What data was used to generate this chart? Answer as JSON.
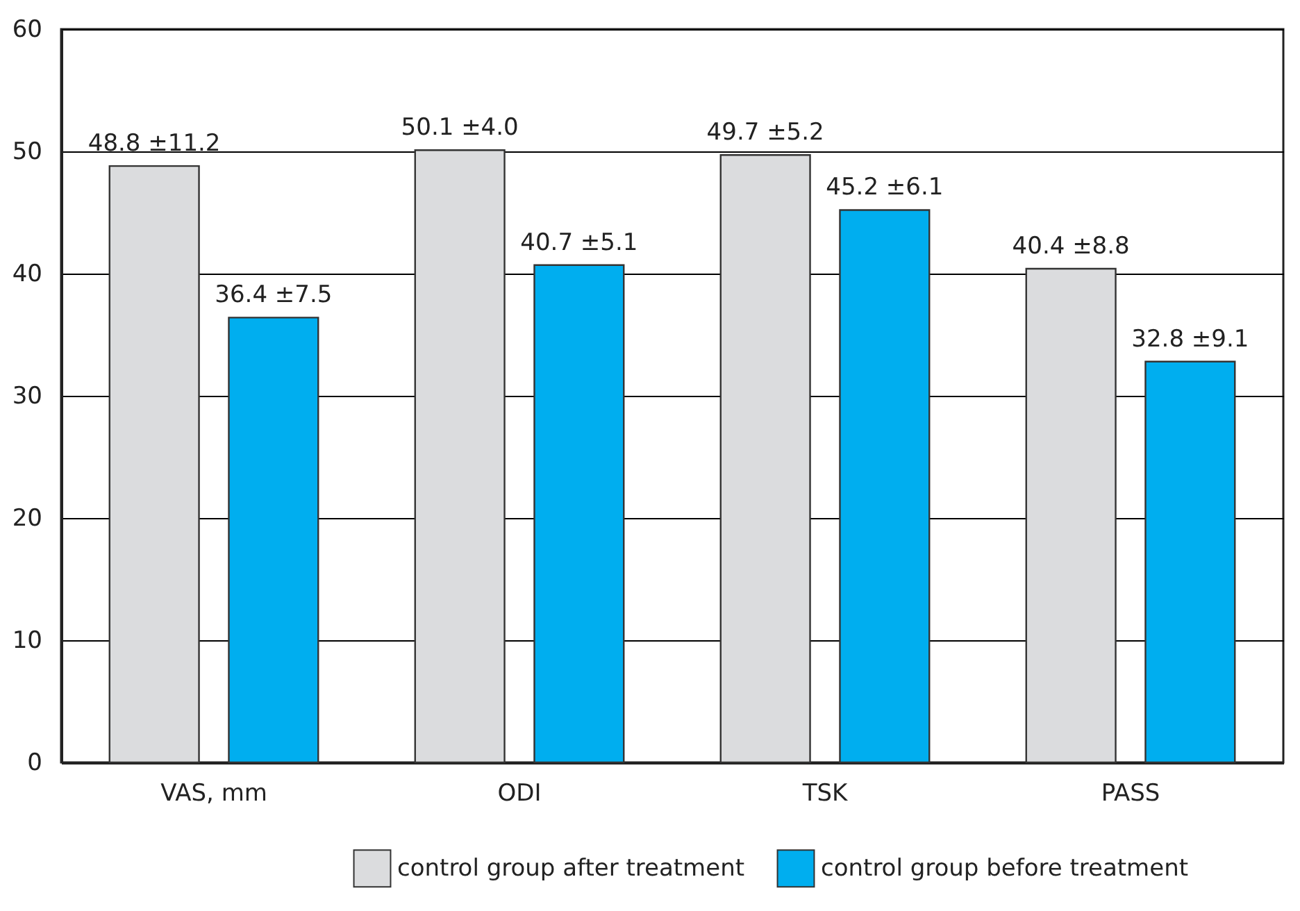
{
  "chart_data": {
    "type": "bar",
    "categories": [
      "VAS, mm",
      "ODI",
      "TSK",
      "PASS"
    ],
    "series": [
      {
        "name": "control group after treatment",
        "color": "#dbdcde",
        "values": [
          48.8,
          50.1,
          49.7,
          40.4
        ],
        "value_labels": [
          "48.8 ±11.2",
          "50.1 ±4.0",
          "49.7 ±5.2",
          "40.4 ±8.8"
        ]
      },
      {
        "name": "control group before treatment",
        "color": "#00aeef",
        "values": [
          36.4,
          40.7,
          45.2,
          32.8
        ],
        "value_labels": [
          "36.4 ±7.5",
          "40.7 ±5.1",
          "45.2 ±6.1",
          "32.8 ±9.1"
        ]
      }
    ],
    "ylim": [
      0,
      60
    ],
    "yticks": [
      0,
      10,
      20,
      30,
      40,
      50,
      60
    ],
    "grid": "y",
    "legend": "bottom right"
  }
}
